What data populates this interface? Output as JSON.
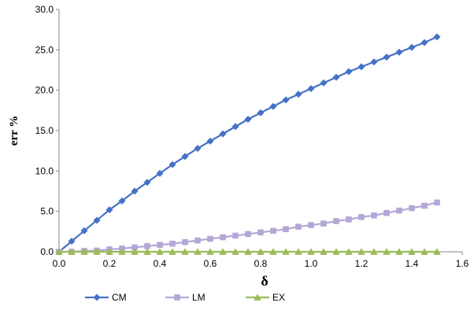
{
  "chart_data": {
    "type": "line",
    "xlabel": "δ",
    "ylabel": "err %",
    "xlim": [
      0.0,
      1.6
    ],
    "ylim": [
      0.0,
      30.0
    ],
    "x_ticks": [
      "0.0",
      "0.2",
      "0.4",
      "0.6",
      "0.8",
      "1.0",
      "1.2",
      "1.4",
      "1.6"
    ],
    "y_ticks": [
      "0.0",
      "5.0",
      "10.0",
      "15.0",
      "20.0",
      "25.0",
      "30.0"
    ],
    "grid": false,
    "legend_position": "bottom",
    "x": [
      0.0,
      0.05,
      0.1,
      0.15,
      0.2,
      0.25,
      0.3,
      0.35,
      0.4,
      0.45,
      0.5,
      0.55,
      0.6,
      0.65,
      0.7,
      0.75,
      0.8,
      0.85,
      0.9,
      0.95,
      1.0,
      1.05,
      1.1,
      1.15,
      1.2,
      1.25,
      1.3,
      1.35,
      1.4,
      1.45,
      1.5
    ],
    "series": [
      {
        "name": "CM",
        "color": "#4472C4",
        "marker": "diamond",
        "values": [
          0.0,
          1.3,
          2.6,
          3.9,
          5.2,
          6.3,
          7.5,
          8.6,
          9.7,
          10.8,
          11.8,
          12.8,
          13.7,
          14.6,
          15.5,
          16.4,
          17.2,
          18.0,
          18.8,
          19.5,
          20.2,
          20.9,
          21.6,
          22.3,
          22.9,
          23.5,
          24.1,
          24.7,
          25.3,
          25.9,
          26.6
        ]
      },
      {
        "name": "LM",
        "color": "#B4A7D6",
        "marker": "square",
        "values": [
          0.0,
          0.0,
          0.1,
          0.15,
          0.3,
          0.4,
          0.55,
          0.7,
          0.85,
          1.0,
          1.2,
          1.4,
          1.6,
          1.8,
          2.0,
          2.2,
          2.4,
          2.6,
          2.8,
          3.1,
          3.3,
          3.5,
          3.8,
          4.0,
          4.3,
          4.5,
          4.8,
          5.1,
          5.4,
          5.7,
          6.1
        ]
      },
      {
        "name": "EX",
        "color": "#9BBB59",
        "marker": "triangle",
        "values": [
          0.0,
          0.0,
          0.0,
          0.0,
          0.0,
          0.0,
          0.0,
          0.0,
          0.0,
          0.0,
          0.0,
          0.0,
          0.0,
          0.0,
          0.0,
          0.0,
          0.0,
          0.0,
          0.0,
          0.0,
          0.0,
          0.0,
          0.0,
          0.0,
          0.0,
          0.0,
          0.0,
          0.0,
          0.0,
          0.0,
          0.0
        ]
      }
    ]
  }
}
